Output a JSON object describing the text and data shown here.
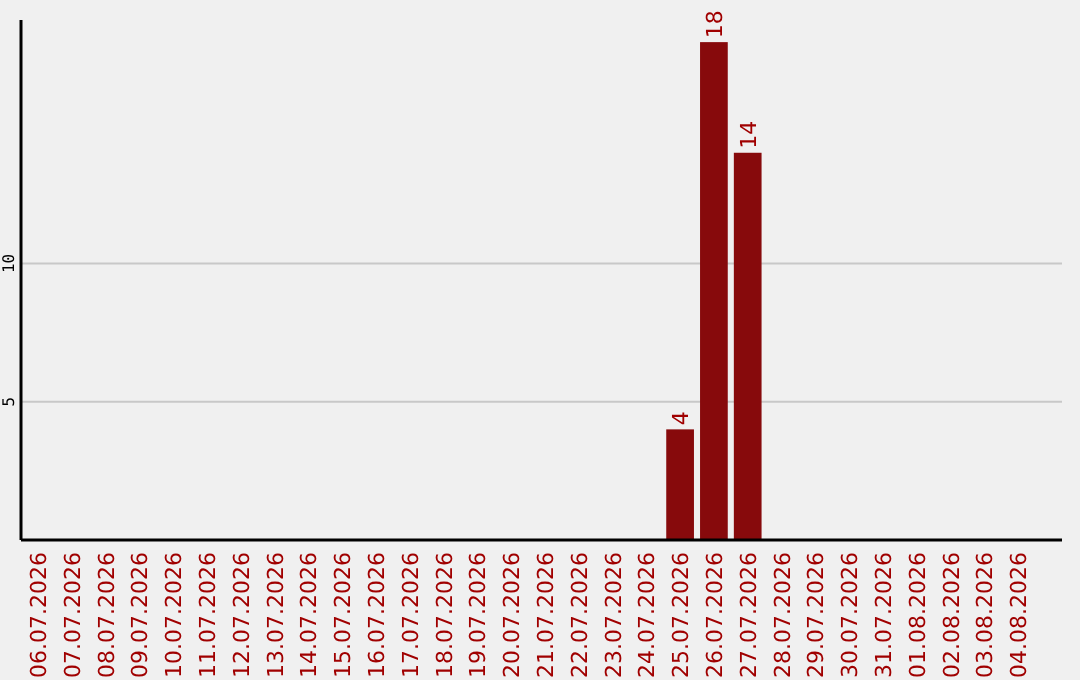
{
  "chart_data": {
    "type": "bar",
    "categories": [
      "06.07.2026",
      "07.07.2026",
      "08.07.2026",
      "09.07.2026",
      "10.07.2026",
      "11.07.2026",
      "12.07.2026",
      "13.07.2026",
      "14.07.2026",
      "15.07.2026",
      "16.07.2026",
      "17.07.2026",
      "18.07.2026",
      "19.07.2026",
      "20.07.2026",
      "21.07.2026",
      "22.07.2026",
      "23.07.2026",
      "24.07.2026",
      "25.07.2026",
      "26.07.2026",
      "27.07.2026",
      "28.07.2026",
      "29.07.2026",
      "30.07.2026",
      "31.07.2026",
      "01.08.2026",
      "02.08.2026",
      "03.08.2026",
      "04.08.2026"
    ],
    "values": [
      0,
      0,
      0,
      0,
      0,
      0,
      0,
      0,
      0,
      0,
      0,
      0,
      0,
      0,
      0,
      0,
      0,
      0,
      0,
      4,
      18,
      14,
      0,
      0,
      0,
      0,
      0,
      0,
      0,
      0
    ],
    "value_labels": [
      null,
      null,
      null,
      null,
      null,
      null,
      null,
      null,
      null,
      null,
      null,
      null,
      null,
      null,
      null,
      null,
      null,
      null,
      null,
      "4",
      "18",
      "14",
      null,
      null,
      null,
      null,
      null,
      null,
      null,
      null
    ],
    "color": "#870a0c",
    "ylim": [
      0,
      18.8
    ],
    "yticks": [
      5,
      10
    ],
    "grid": "y"
  }
}
